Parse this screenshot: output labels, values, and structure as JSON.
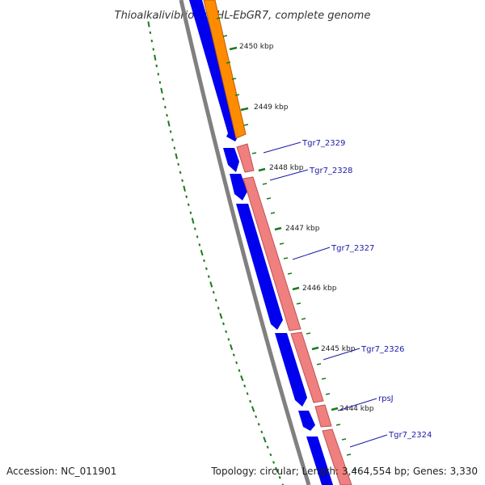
{
  "title": "Thioalkalivibrio sp. HL-EbGR7, complete genome",
  "footer": {
    "accession": "Accession: NC_011901",
    "summary": "Topology: circular; Length: 3,464,554 bp; Genes: 3,330"
  },
  "ticks": [
    "2450 kbp",
    "2449 kbp",
    "2448 kbp",
    "2447 kbp",
    "2446 kbp",
    "2445 kbp",
    "2444 kbp"
  ],
  "genes": [
    "Tgr7_2329",
    "Tgr7_2328",
    "Tgr7_2327",
    "Tgr7_2326",
    "rpsJ",
    "Tgr7_2324"
  ],
  "colors": {
    "cds_forward": "#0000ee",
    "cds_reverse_pink": "#f08080",
    "cds_reverse_orange": "#ff8c00",
    "backbone": "#808080",
    "tick": "#1a7a1a",
    "gene_label": "#1a1aa8"
  }
}
